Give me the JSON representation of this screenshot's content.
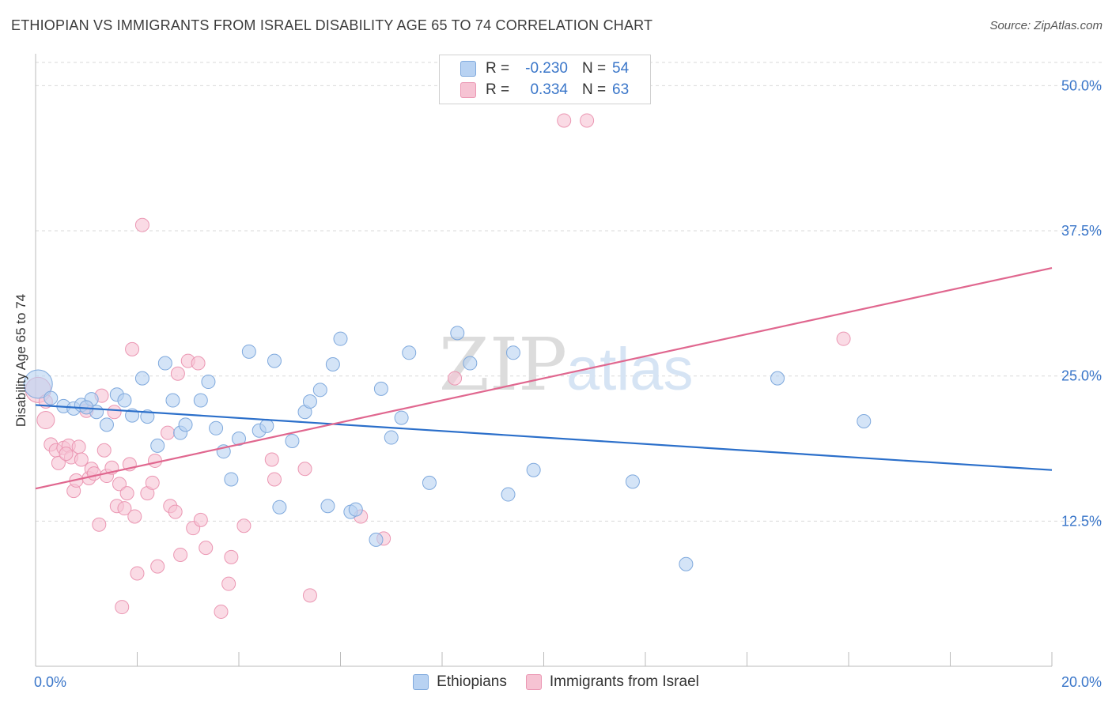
{
  "header": {
    "title": "ETHIOPIAN VS IMMIGRANTS FROM ISRAEL DISABILITY AGE 65 TO 74 CORRELATION CHART",
    "source": "Source: ZipAtlas.com"
  },
  "legend": {
    "rows": [
      {
        "r_label": "R =",
        "r_value": "-0.230",
        "n_label": "N =",
        "n_value": "54"
      },
      {
        "r_label": "R =",
        "r_value": "0.334",
        "n_label": "N =",
        "n_value": "63"
      }
    ]
  },
  "watermark": {
    "zip": "ZIP",
    "atlas": "atlas"
  },
  "colors": {
    "blue_fill": "#b8d2f2",
    "blue_stroke": "#7fa9dd",
    "blue_line": "#2b6fca",
    "pink_fill": "#f6c3d3",
    "pink_stroke": "#eb97b3",
    "pink_line": "#e0678f",
    "grid": "#d9d9d9",
    "tick_text": "#3a76c9"
  },
  "chart_data": {
    "type": "scatter",
    "title": "ETHIOPIAN VS IMMIGRANTS FROM ISRAEL DISABILITY AGE 65 TO 74 CORRELATION CHART",
    "xlabel": "",
    "ylabel": "Disability Age 65 to 74",
    "xlim": [
      0,
      20
    ],
    "ylim": [
      0,
      52
    ],
    "x_tick_labels": [
      "0.0%",
      "20.0%"
    ],
    "y_ticks": [
      12.5,
      25.0,
      37.5,
      50.0
    ],
    "y_tick_labels": [
      "12.5%",
      "25.0%",
      "37.5%",
      "50.0%"
    ],
    "grid": true,
    "legend_position": "bottom",
    "series": [
      {
        "name": "Ethiopians",
        "color": "#b8d2f2",
        "trend": {
          "x": [
            0,
            20
          ],
          "y": [
            22.5,
            16.9
          ]
        },
        "points": [
          [
            0.05,
            24.3
          ],
          [
            0.3,
            23.1
          ],
          [
            0.55,
            22.4
          ],
          [
            0.75,
            22.2
          ],
          [
            0.9,
            22.5
          ],
          [
            1.1,
            23.0
          ],
          [
            1.2,
            21.9
          ],
          [
            1.4,
            20.8
          ],
          [
            1.6,
            23.4
          ],
          [
            1.75,
            22.9
          ],
          [
            1.9,
            21.6
          ],
          [
            2.1,
            24.8
          ],
          [
            2.2,
            21.5
          ],
          [
            2.4,
            19.0
          ],
          [
            2.55,
            26.1
          ],
          [
            2.7,
            22.9
          ],
          [
            2.85,
            20.1
          ],
          [
            2.95,
            20.8
          ],
          [
            3.25,
            22.9
          ],
          [
            3.4,
            24.5
          ],
          [
            3.55,
            20.5
          ],
          [
            3.7,
            18.5
          ],
          [
            3.85,
            16.1
          ],
          [
            4.0,
            19.6
          ],
          [
            4.2,
            27.1
          ],
          [
            4.4,
            20.3
          ],
          [
            4.55,
            20.7
          ],
          [
            4.7,
            26.3
          ],
          [
            4.8,
            13.7
          ],
          [
            5.05,
            19.4
          ],
          [
            5.3,
            21.9
          ],
          [
            5.4,
            22.8
          ],
          [
            5.6,
            23.8
          ],
          [
            5.75,
            13.8
          ],
          [
            5.85,
            26.0
          ],
          [
            6.0,
            28.2
          ],
          [
            6.2,
            13.3
          ],
          [
            6.3,
            13.5
          ],
          [
            6.7,
            10.9
          ],
          [
            6.8,
            23.9
          ],
          [
            7.0,
            19.7
          ],
          [
            7.2,
            21.4
          ],
          [
            7.35,
            27.0
          ],
          [
            7.75,
            15.8
          ],
          [
            8.3,
            28.7
          ],
          [
            8.55,
            26.1
          ],
          [
            9.3,
            14.8
          ],
          [
            9.4,
            27.0
          ],
          [
            9.8,
            16.9
          ],
          [
            11.75,
            15.9
          ],
          [
            12.8,
            8.8
          ],
          [
            14.6,
            24.8
          ],
          [
            16.3,
            21.1
          ],
          [
            1.0,
            22.3
          ]
        ]
      },
      {
        "name": "Immigrants from Israel",
        "color": "#f6c3d3",
        "trend": {
          "x": [
            0,
            20
          ],
          "y": [
            15.3,
            34.3
          ]
        },
        "points": [
          [
            0.05,
            23.8
          ],
          [
            0.2,
            21.2
          ],
          [
            0.3,
            19.1
          ],
          [
            0.4,
            18.6
          ],
          [
            0.45,
            17.5
          ],
          [
            0.55,
            18.8
          ],
          [
            0.65,
            19.0
          ],
          [
            0.7,
            18.0
          ],
          [
            0.75,
            15.1
          ],
          [
            0.8,
            16.0
          ],
          [
            0.85,
            18.9
          ],
          [
            0.9,
            17.8
          ],
          [
            1.0,
            22.3
          ],
          [
            1.05,
            16.2
          ],
          [
            1.1,
            17.0
          ],
          [
            1.15,
            16.6
          ],
          [
            1.25,
            12.2
          ],
          [
            1.3,
            23.3
          ],
          [
            1.35,
            18.6
          ],
          [
            1.4,
            16.4
          ],
          [
            1.5,
            17.1
          ],
          [
            1.55,
            21.9
          ],
          [
            1.6,
            13.8
          ],
          [
            1.65,
            15.7
          ],
          [
            1.7,
            5.1
          ],
          [
            1.75,
            13.6
          ],
          [
            1.8,
            14.9
          ],
          [
            1.85,
            17.4
          ],
          [
            1.9,
            27.3
          ],
          [
            1.95,
            12.9
          ],
          [
            2.0,
            8.0
          ],
          [
            2.1,
            38.0
          ],
          [
            2.2,
            14.9
          ],
          [
            2.3,
            15.8
          ],
          [
            2.35,
            17.7
          ],
          [
            2.4,
            8.6
          ],
          [
            2.6,
            20.1
          ],
          [
            2.65,
            13.8
          ],
          [
            2.75,
            13.3
          ],
          [
            2.8,
            25.2
          ],
          [
            2.85,
            9.6
          ],
          [
            3.0,
            26.3
          ],
          [
            3.1,
            11.9
          ],
          [
            3.2,
            26.1
          ],
          [
            3.25,
            12.6
          ],
          [
            3.35,
            10.2
          ],
          [
            3.65,
            4.7
          ],
          [
            3.8,
            7.1
          ],
          [
            3.85,
            9.4
          ],
          [
            4.1,
            12.1
          ],
          [
            4.65,
            17.8
          ],
          [
            4.7,
            16.1
          ],
          [
            5.3,
            17.0
          ],
          [
            5.4,
            6.1
          ],
          [
            6.4,
            12.9
          ],
          [
            6.85,
            11.0
          ],
          [
            8.25,
            24.8
          ],
          [
            10.4,
            47.0
          ],
          [
            10.85,
            47.0
          ],
          [
            15.9,
            28.2
          ],
          [
            1.0,
            22.0
          ],
          [
            0.2,
            22.8
          ],
          [
            0.6,
            18.3
          ]
        ]
      }
    ]
  }
}
